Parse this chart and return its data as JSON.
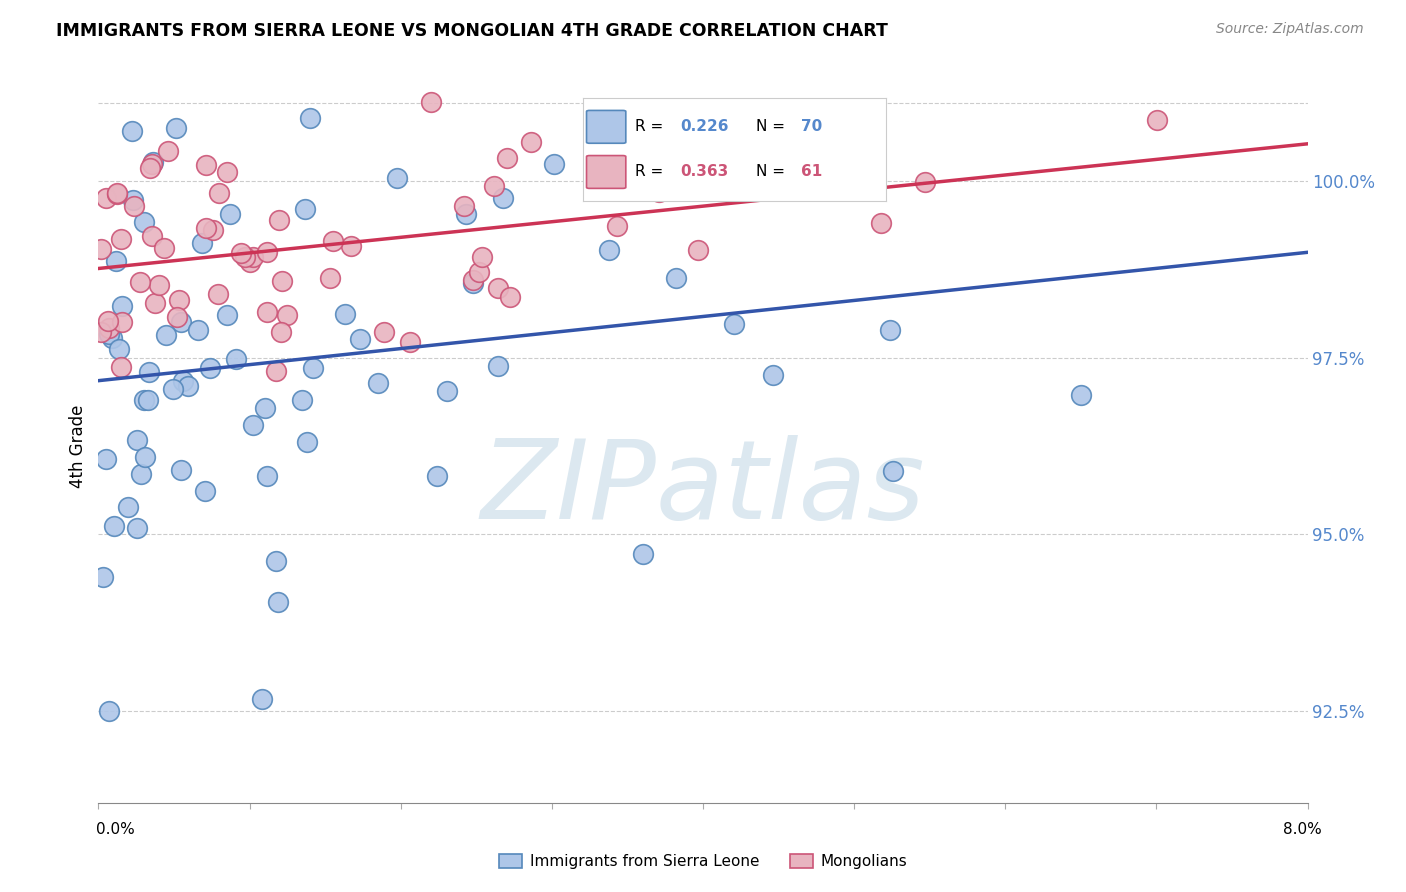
{
  "title": "IMMIGRANTS FROM SIERRA LEONE VS MONGOLIAN 4TH GRADE CORRELATION CHART",
  "source": "Source: ZipAtlas.com",
  "ylabel": "4th Grade",
  "y_ticks": [
    92.5,
    95.0,
    97.5,
    100.0
  ],
  "y_tick_labels": [
    "92.5%",
    "95.0%",
    "97.5%",
    "100.0%"
  ],
  "x_min": 0.0,
  "x_max": 8.0,
  "y_min": 91.2,
  "y_max": 101.3,
  "blue_label": "Immigrants from Sierra Leone",
  "pink_label": "Mongolians",
  "blue_R": 0.226,
  "blue_N": 70,
  "pink_R": 0.363,
  "pink_N": 61,
  "blue_scatter_face": "#aec6e8",
  "blue_scatter_edge": "#5588bb",
  "pink_scatter_face": "#e8b4c0",
  "pink_scatter_edge": "#cc5577",
  "blue_line": "#3355aa",
  "pink_line": "#cc3355",
  "watermark_color": "#dce8f0",
  "grid_color": "#cccccc",
  "ytick_color": "#5588cc"
}
